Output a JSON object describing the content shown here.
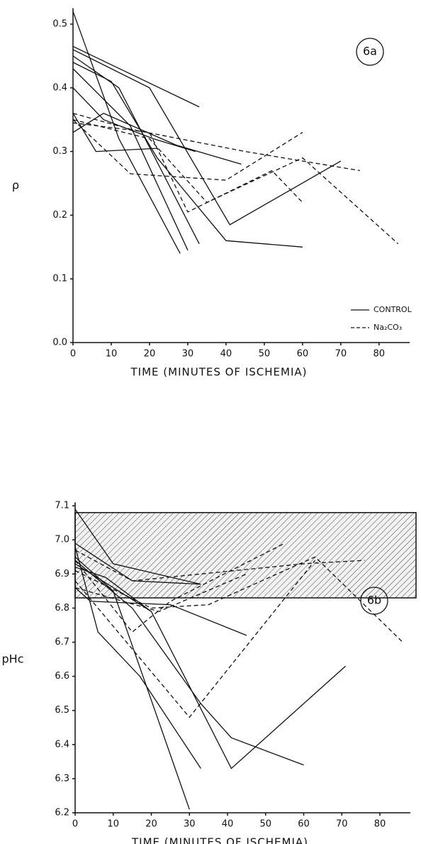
{
  "chart_data": [
    {
      "type": "line",
      "annotation": "6a",
      "y_label": "ρ",
      "x_label": "TIME (MINUTES OF ISCHEMIA)",
      "xlim": [
        0,
        88
      ],
      "xticks": [
        0,
        10,
        20,
        30,
        40,
        50,
        60,
        70,
        80
      ],
      "ylim": [
        0,
        0.525
      ],
      "yticks": [
        {
          "value": 0,
          "label": "0.0"
        },
        0.1,
        0.2,
        0.3,
        0.4,
        0.5
      ],
      "color": "#111111",
      "groups": [
        {
          "name": "CONTROL",
          "style": "solid",
          "lines": [
            {
              "x": [
                0,
                12,
                28
              ],
              "y": [
                0.52,
                0.32,
                0.14
              ]
            },
            {
              "x": [
                0,
                33
              ],
              "y": [
                0.465,
                0.37
              ]
            },
            {
              "x": [
                0,
                20,
                41,
                70
              ],
              "y": [
                0.46,
                0.4,
                0.185,
                0.285
              ]
            },
            {
              "x": [
                0,
                12,
                33
              ],
              "y": [
                0.45,
                0.4,
                0.155
              ]
            },
            {
              "x": [
                0,
                10,
                22,
                40,
                60
              ],
              "y": [
                0.44,
                0.41,
                0.29,
                0.16,
                0.15
              ]
            },
            {
              "x": [
                0,
                15,
                30
              ],
              "y": [
                0.43,
                0.34,
                0.145
              ]
            },
            {
              "x": [
                0,
                6,
                22
              ],
              "y": [
                0.36,
                0.3,
                0.305
              ]
            },
            {
              "x": [
                0,
                8,
                21,
                32
              ],
              "y": [
                0.4,
                0.35,
                0.32,
                0.3
              ]
            },
            {
              "x": [
                0,
                8,
                27,
                44
              ],
              "y": [
                0.33,
                0.36,
                0.31,
                0.28
              ]
            }
          ]
        },
        {
          "name": "Na₂CO₃",
          "style": "dashed",
          "lines": [
            {
              "x": [
                0,
                15,
                45,
                75
              ],
              "y": [
                0.36,
                0.335,
                0.3,
                0.27
              ]
            },
            {
              "x": [
                0,
                15,
                40,
                60
              ],
              "y": [
                0.35,
                0.265,
                0.255,
                0.33
              ]
            },
            {
              "x": [
                0,
                20,
                35,
                60,
                85
              ],
              "y": [
                0.35,
                0.32,
                0.22,
                0.29,
                0.155
              ]
            },
            {
              "x": [
                0,
                20,
                30,
                52,
                60
              ],
              "y": [
                0.345,
                0.33,
                0.205,
                0.27,
                0.22
              ]
            }
          ]
        }
      ]
    },
    {
      "type": "line",
      "annotation": "6b",
      "y_label": "pHc",
      "x_label": "TIME (MINUTES OF ISCHEMIA)",
      "xlim": [
        0,
        88
      ],
      "xticks": [
        0,
        10,
        20,
        30,
        40,
        50,
        60,
        70,
        80
      ],
      "ylim": [
        6.2,
        7.11
      ],
      "yticks": [
        6.2,
        6.3,
        6.4,
        6.5,
        6.6,
        6.7,
        6.8,
        6.9,
        {
          "value": 7,
          "label": "7.0"
        },
        7.1
      ],
      "band": [
        6.83,
        7.08
      ],
      "color": "#111111",
      "groups": [
        {
          "name": "CONTROL",
          "style": "solid",
          "lines": [
            {
              "x": [
                0,
                10,
                33
              ],
              "y": [
                7.09,
                6.93,
                6.87
              ]
            },
            {
              "x": [
                0,
                15,
                33
              ],
              "y": [
                6.99,
                6.88,
                6.87
              ]
            },
            {
              "x": [
                0,
                6,
                17,
                33
              ],
              "y": [
                6.98,
                6.73,
                6.6,
                6.33
              ]
            },
            {
              "x": [
                0,
                10,
                30
              ],
              "y": [
                6.95,
                6.85,
                6.21
              ]
            },
            {
              "x": [
                0,
                15,
                33,
                41,
                60
              ],
              "y": [
                6.94,
                6.8,
                6.52,
                6.42,
                6.34
              ]
            },
            {
              "x": [
                0,
                20,
                41,
                71
              ],
              "y": [
                6.93,
                6.79,
                6.33,
                6.63
              ]
            },
            {
              "x": [
                0,
                8,
                20
              ],
              "y": [
                6.92,
                6.89,
                6.79
              ]
            },
            {
              "x": [
                0,
                4,
                25,
                45
              ],
              "y": [
                6.86,
                6.82,
                6.81,
                6.72
              ]
            }
          ]
        },
        {
          "name": "Na₂CO₃",
          "style": "dashed",
          "lines": [
            {
              "x": [
                0,
                15,
                60,
                76
              ],
              "y": [
                6.97,
                6.88,
                6.93,
                6.94
              ]
            },
            {
              "x": [
                0,
                15,
                25,
                55
              ],
              "y": [
                6.94,
                6.73,
                6.82,
                6.99
              ]
            },
            {
              "x": [
                0,
                20,
                35,
                63,
                86
              ],
              "y": [
                6.91,
                6.8,
                6.81,
                6.95,
                6.7
              ]
            },
            {
              "x": [
                0,
                30,
                63
              ],
              "y": [
                6.88,
                6.48,
                6.94
              ]
            },
            {
              "x": [
                0,
                22,
                45
              ],
              "y": [
                6.86,
                6.79,
                6.9
              ]
            }
          ]
        }
      ]
    }
  ]
}
